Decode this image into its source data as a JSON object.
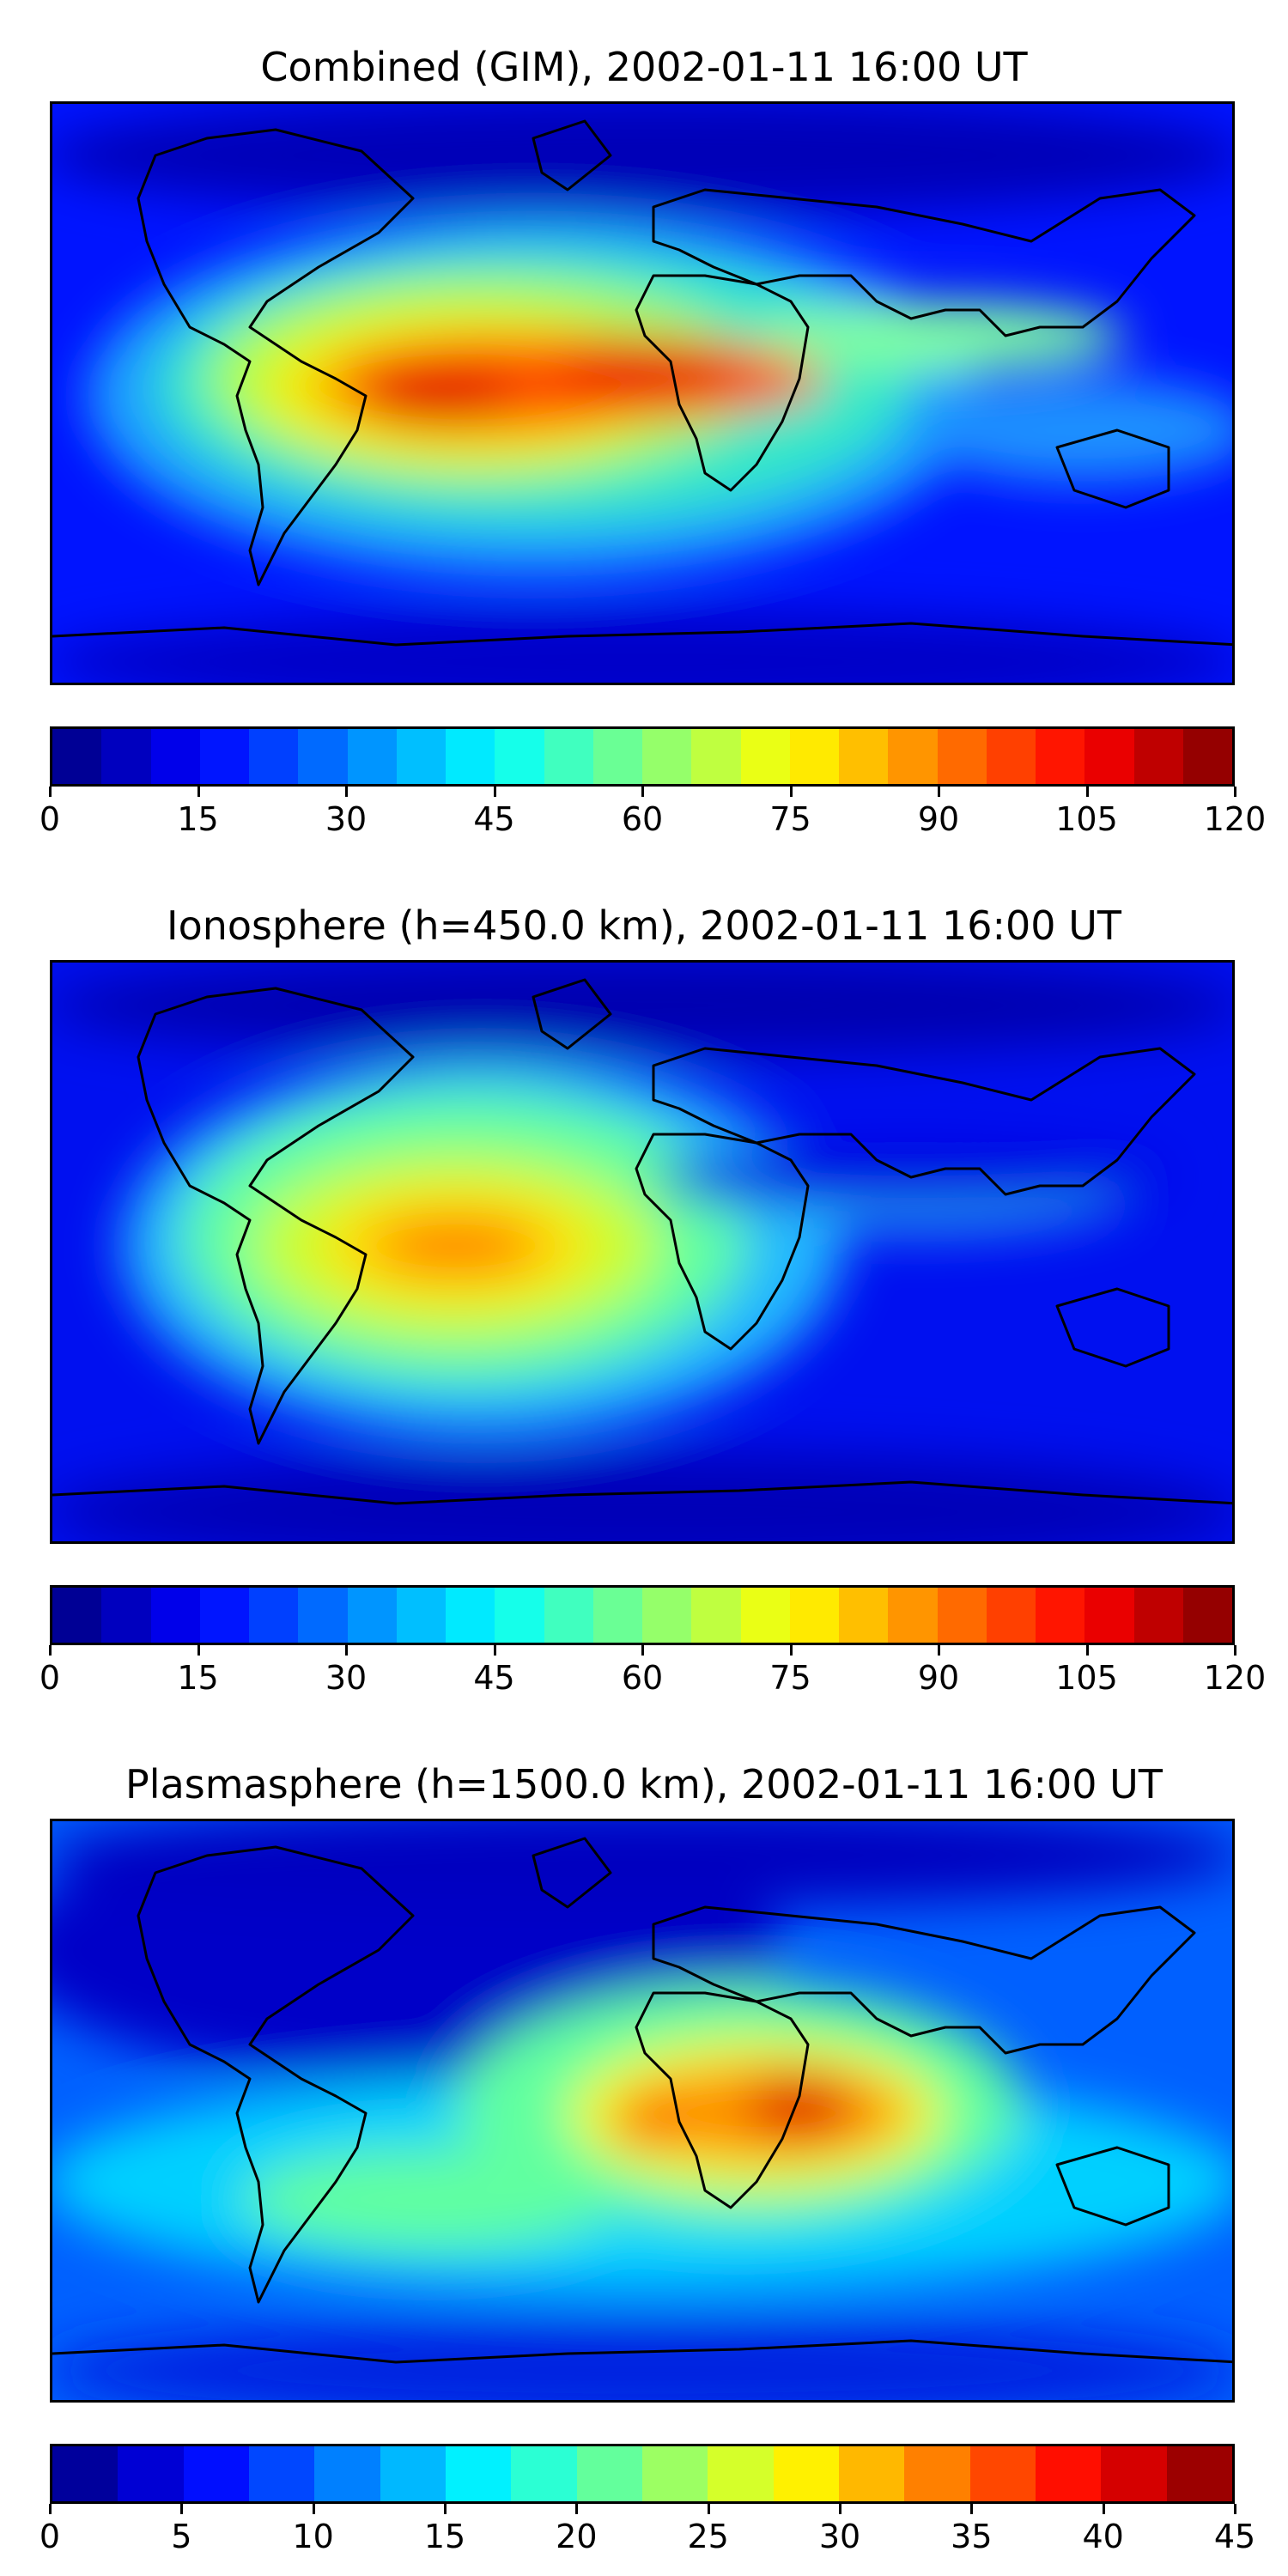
{
  "panels": [
    {
      "title": "Combined (GIM), 2002-01-11 16:00 UT",
      "colorbar": {
        "min": 0,
        "max": 120,
        "levels": 24,
        "ticks": [
          "0",
          "15",
          "30",
          "45",
          "60",
          "75",
          "90",
          "105",
          "120"
        ]
      },
      "hotspots": [
        "south-america-equatorial",
        "central-africa-equatorial"
      ]
    },
    {
      "title": "Ionosphere  (h=450.0 km), 2002-01-11 16:00 UT",
      "colorbar": {
        "min": 0,
        "max": 120,
        "levels": 24,
        "ticks": [
          "0",
          "15",
          "30",
          "45",
          "60",
          "75",
          "90",
          "105",
          "120"
        ]
      },
      "hotspots": [
        "northern-south-america"
      ]
    },
    {
      "title": "Plasmasphere (h=1500.0 km), 2002-01-11 16:00 UT",
      "colorbar": {
        "min": 0,
        "max": 45,
        "levels": 18,
        "ticks": [
          "0",
          "5",
          "10",
          "15",
          "20",
          "25",
          "30",
          "35",
          "40",
          "45"
        ]
      },
      "hotspots": [
        "east-africa-horn",
        "west-africa"
      ]
    }
  ],
  "colormap": "jet"
}
